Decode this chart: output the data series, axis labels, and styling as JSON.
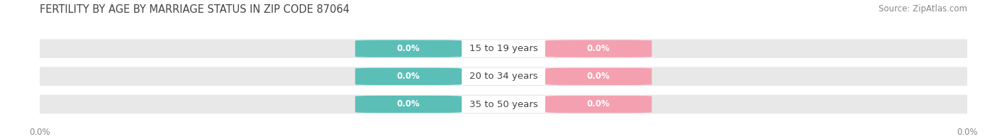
{
  "title": "FERTILITY BY AGE BY MARRIAGE STATUS IN ZIP CODE 87064",
  "source": "Source: ZipAtlas.com",
  "categories": [
    "15 to 19 years",
    "20 to 34 years",
    "35 to 50 years"
  ],
  "married_values": [
    0.0,
    0.0,
    0.0
  ],
  "unmarried_values": [
    0.0,
    0.0,
    0.0
  ],
  "married_color": "#5BBFB8",
  "unmarried_color": "#F4A0B0",
  "bar_bg_color": "#E8E8E8",
  "bar_bg_color2": "#F2F2F2",
  "center_label_bg": "#FFFFFF",
  "title_fontsize": 10.5,
  "source_fontsize": 8.5,
  "category_fontsize": 9.5,
  "value_fontsize": 8.5,
  "legend_fontsize": 9,
  "tick_fontsize": 8.5,
  "background_color": "#FFFFFF",
  "title_color": "#444444",
  "source_color": "#888888",
  "tick_color": "#888888",
  "category_color": "#444444"
}
